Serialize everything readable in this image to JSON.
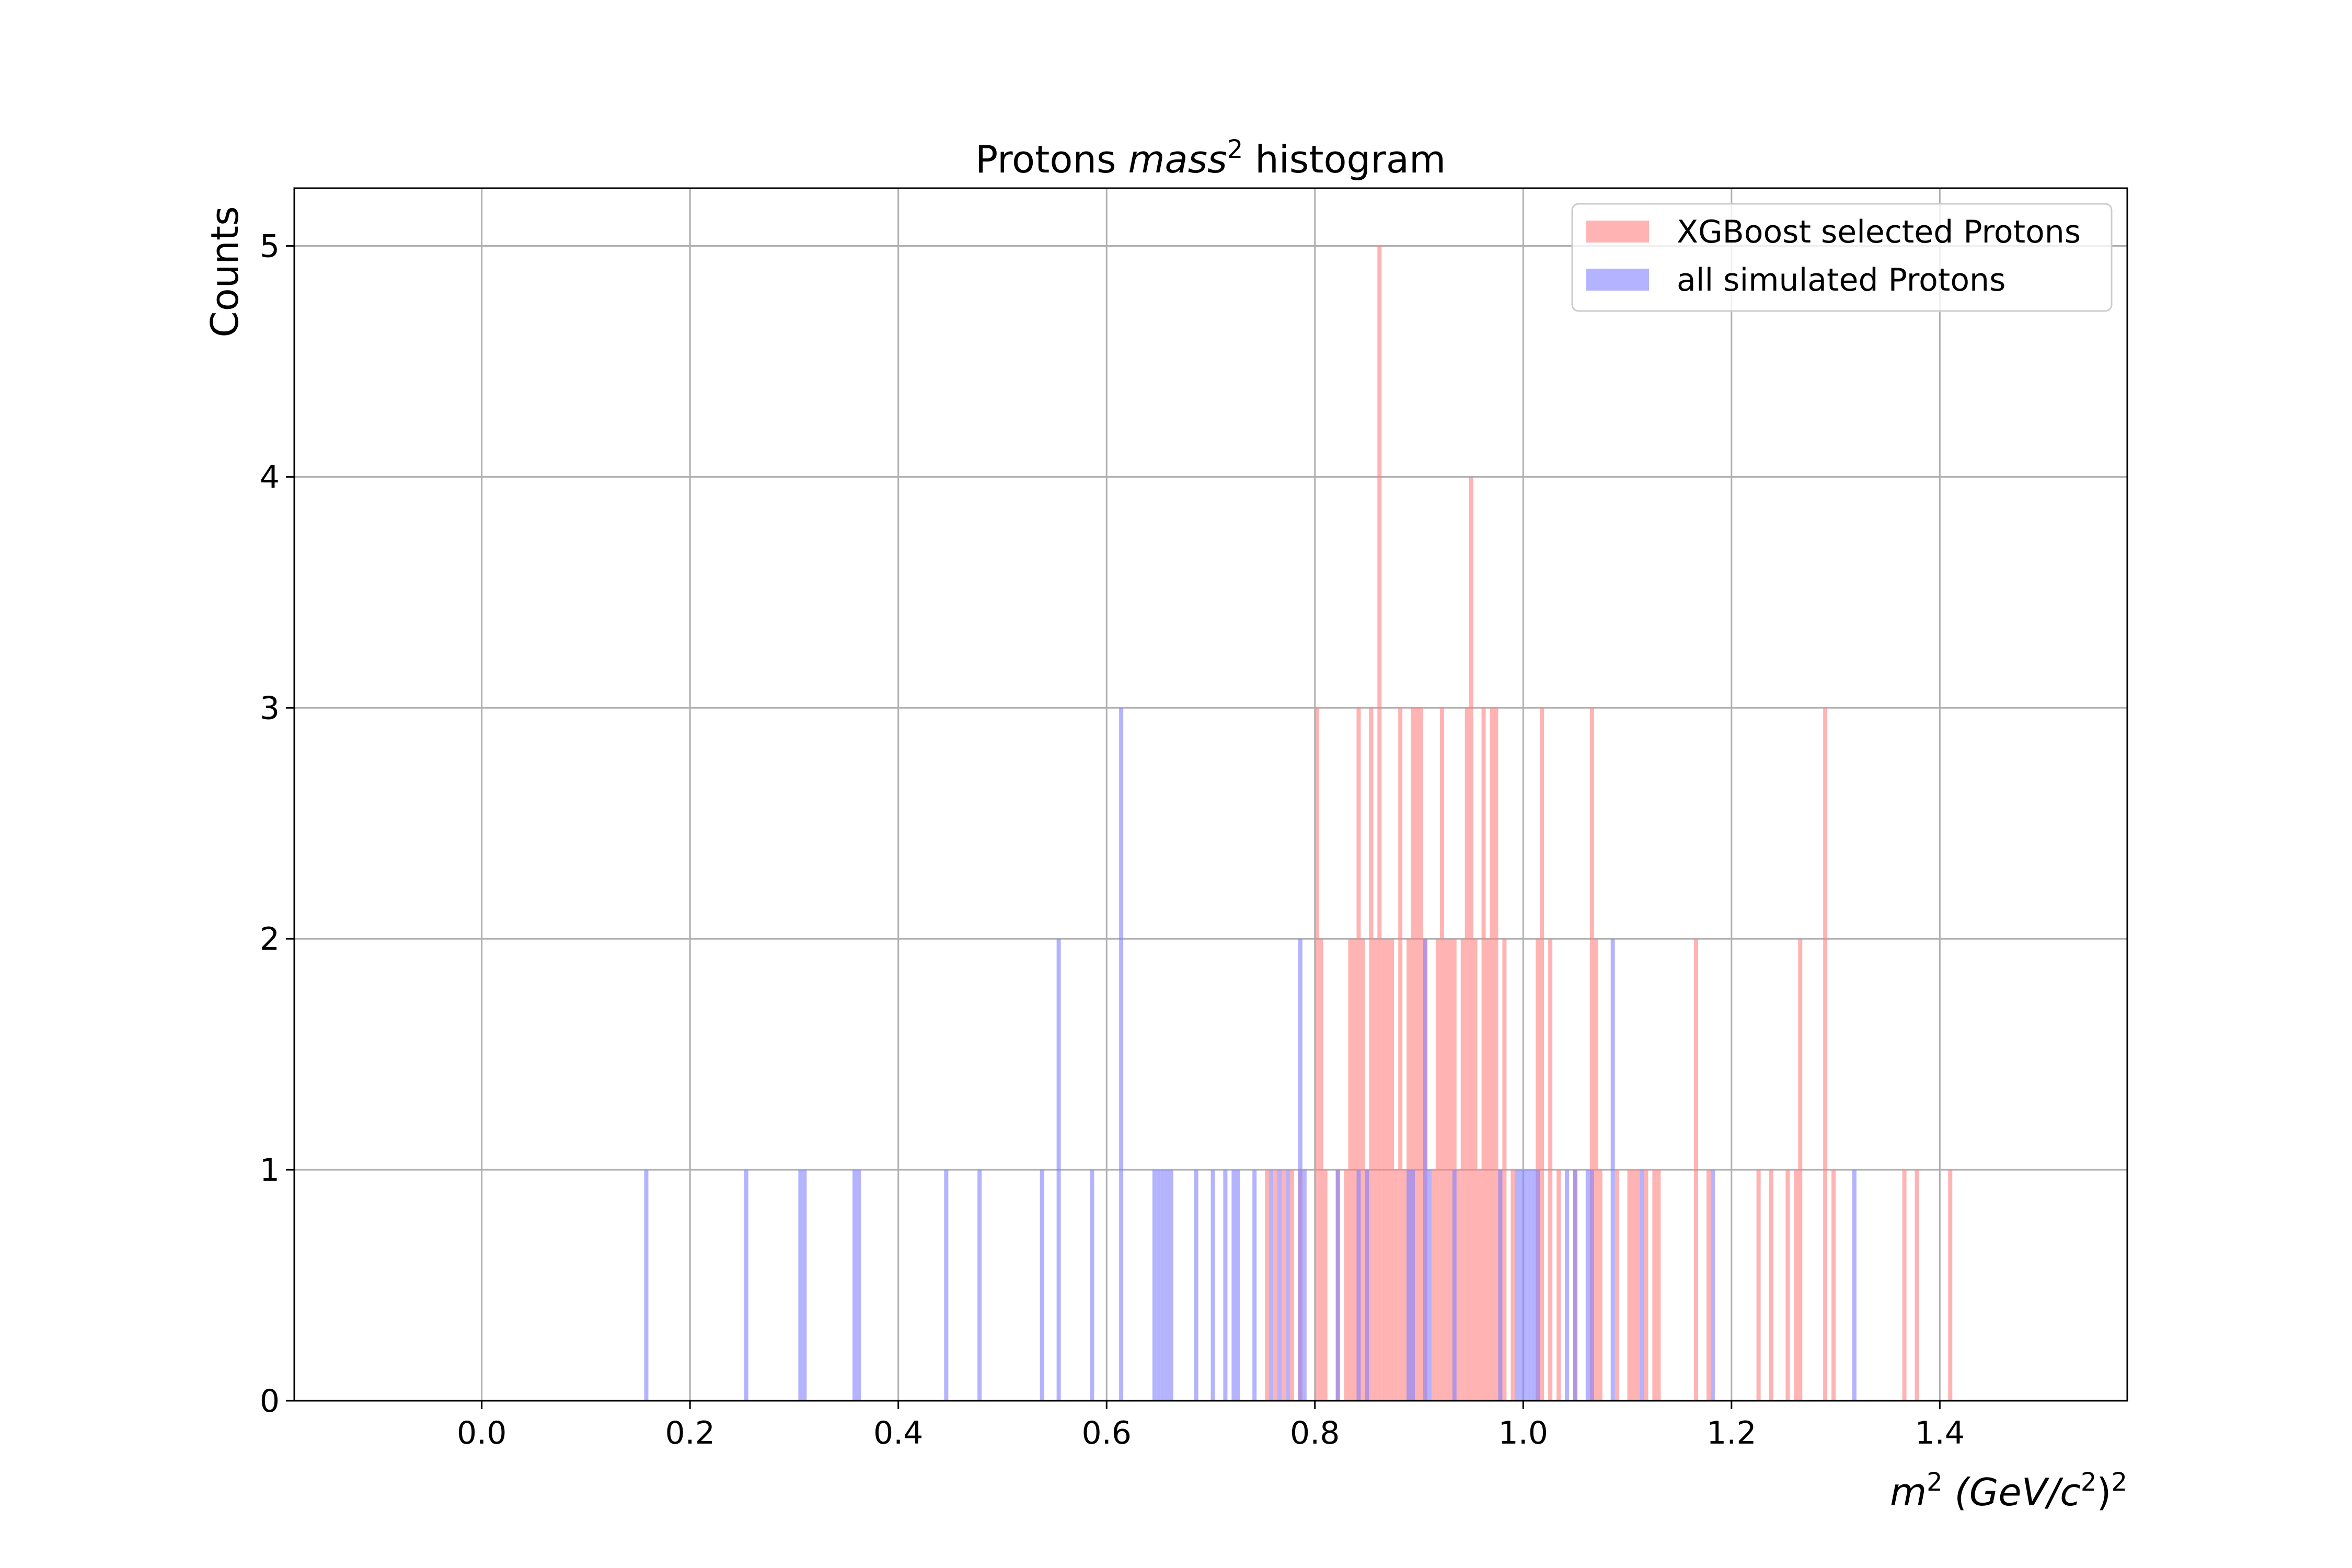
{
  "chart_data": {
    "type": "bar",
    "title": {
      "prefix": "Protons ",
      "italic": "mass",
      "sup": "2",
      "suffix": " histogram"
    },
    "xlabel": {
      "m": "m",
      "m_sup": "2",
      "rest": " (GeV/c",
      "inner_sup": "2",
      "close": ")",
      "outer_sup": "2"
    },
    "ylabel": "Counts",
    "xlim": [
      -0.18,
      1.58
    ],
    "ylim": [
      0,
      5.25
    ],
    "bin_width": 0.004,
    "grid": true,
    "legend_position": "top-right",
    "x_ticks": [
      {
        "value": 0.0,
        "label": "0.0"
      },
      {
        "value": 0.2,
        "label": "0.2"
      },
      {
        "value": 0.4,
        "label": "0.4"
      },
      {
        "value": 0.6,
        "label": "0.6"
      },
      {
        "value": 0.8,
        "label": "0.8"
      },
      {
        "value": 1.0,
        "label": "1.0"
      },
      {
        "value": 1.2,
        "label": "1.2"
      },
      {
        "value": 1.4,
        "label": "1.4"
      }
    ],
    "y_ticks": [
      {
        "value": 0,
        "label": "0"
      },
      {
        "value": 1,
        "label": "1"
      },
      {
        "value": 2,
        "label": "2"
      },
      {
        "value": 3,
        "label": "3"
      },
      {
        "value": 4,
        "label": "4"
      },
      {
        "value": 5,
        "label": "5"
      }
    ],
    "series": [
      {
        "name": "XGBoost selected Protons",
        "color": "#ff8080",
        "opacity": 0.6,
        "bins": [
          [
            0.752,
            1
          ],
          [
            0.76,
            1
          ],
          [
            0.768,
            1
          ],
          [
            0.776,
            1
          ],
          [
            0.784,
            1
          ],
          [
            0.8,
            3
          ],
          [
            0.804,
            2
          ],
          [
            0.808,
            1
          ],
          [
            0.82,
            1
          ],
          [
            0.828,
            1
          ],
          [
            0.832,
            2
          ],
          [
            0.836,
            2
          ],
          [
            0.84,
            3
          ],
          [
            0.844,
            2
          ],
          [
            0.848,
            1
          ],
          [
            0.852,
            3
          ],
          [
            0.856,
            2
          ],
          [
            0.86,
            5
          ],
          [
            0.864,
            2
          ],
          [
            0.868,
            2
          ],
          [
            0.872,
            2
          ],
          [
            0.876,
            1
          ],
          [
            0.88,
            3
          ],
          [
            0.884,
            1
          ],
          [
            0.888,
            2
          ],
          [
            0.892,
            3
          ],
          [
            0.896,
            3
          ],
          [
            0.9,
            3
          ],
          [
            0.904,
            2
          ],
          [
            0.912,
            1
          ],
          [
            0.916,
            2
          ],
          [
            0.92,
            3
          ],
          [
            0.924,
            2
          ],
          [
            0.928,
            2
          ],
          [
            0.932,
            2
          ],
          [
            0.936,
            1
          ],
          [
            0.94,
            2
          ],
          [
            0.944,
            3
          ],
          [
            0.948,
            4
          ],
          [
            0.952,
            2
          ],
          [
            0.956,
            1
          ],
          [
            0.96,
            3
          ],
          [
            0.964,
            2
          ],
          [
            0.968,
            3
          ],
          [
            0.972,
            3
          ],
          [
            0.976,
            1
          ],
          [
            0.98,
            2
          ],
          [
            0.988,
            1
          ],
          [
            1.012,
            2
          ],
          [
            1.016,
            3
          ],
          [
            1.024,
            2
          ],
          [
            1.032,
            1
          ],
          [
            1.048,
            1
          ],
          [
            1.064,
            3
          ],
          [
            1.068,
            2
          ],
          [
            1.072,
            1
          ],
          [
            1.088,
            1
          ],
          [
            1.1,
            1
          ],
          [
            1.104,
            1
          ],
          [
            1.108,
            1
          ],
          [
            1.116,
            1
          ],
          [
            1.124,
            1
          ],
          [
            1.128,
            1
          ],
          [
            1.164,
            2
          ],
          [
            1.176,
            1
          ],
          [
            1.224,
            1
          ],
          [
            1.236,
            1
          ],
          [
            1.252,
            1
          ],
          [
            1.26,
            1
          ],
          [
            1.264,
            2
          ],
          [
            1.288,
            3
          ],
          [
            1.296,
            1
          ],
          [
            1.364,
            1
          ],
          [
            1.376,
            1
          ],
          [
            1.408,
            1
          ]
        ]
      },
      {
        "name": "all simulated Protons",
        "color": "#8080ff",
        "opacity": 0.6,
        "bins": [
          [
            0.156,
            1
          ],
          [
            0.252,
            1
          ],
          [
            0.304,
            1
          ],
          [
            0.308,
            1
          ],
          [
            0.356,
            1
          ],
          [
            0.36,
            1
          ],
          [
            0.444,
            1
          ],
          [
            0.476,
            1
          ],
          [
            0.536,
            1
          ],
          [
            0.552,
            2
          ],
          [
            0.584,
            1
          ],
          [
            0.612,
            3
          ],
          [
            0.644,
            1
          ],
          [
            0.648,
            1
          ],
          [
            0.652,
            1
          ],
          [
            0.656,
            1
          ],
          [
            0.66,
            1
          ],
          [
            0.684,
            1
          ],
          [
            0.7,
            1
          ],
          [
            0.712,
            1
          ],
          [
            0.72,
            1
          ],
          [
            0.724,
            1
          ],
          [
            0.74,
            1
          ],
          [
            0.756,
            1
          ],
          [
            0.764,
            1
          ],
          [
            0.772,
            1
          ],
          [
            0.784,
            2
          ],
          [
            0.788,
            1
          ],
          [
            0.82,
            1
          ],
          [
            0.84,
            1
          ],
          [
            0.848,
            1
          ],
          [
            0.888,
            1
          ],
          [
            0.892,
            1
          ],
          [
            0.904,
            2
          ],
          [
            0.908,
            1
          ],
          [
            0.932,
            1
          ],
          [
            0.976,
            1
          ],
          [
            0.992,
            1
          ],
          [
            0.996,
            1
          ],
          [
            1.0,
            1
          ],
          [
            1.004,
            1
          ],
          [
            1.008,
            1
          ],
          [
            1.012,
            1
          ],
          [
            1.04,
            1
          ],
          [
            1.048,
            1
          ],
          [
            1.06,
            1
          ],
          [
            1.064,
            1
          ],
          [
            1.084,
            2
          ],
          [
            1.112,
            1
          ],
          [
            1.18,
            1
          ],
          [
            1.316,
            1
          ]
        ]
      }
    ]
  }
}
